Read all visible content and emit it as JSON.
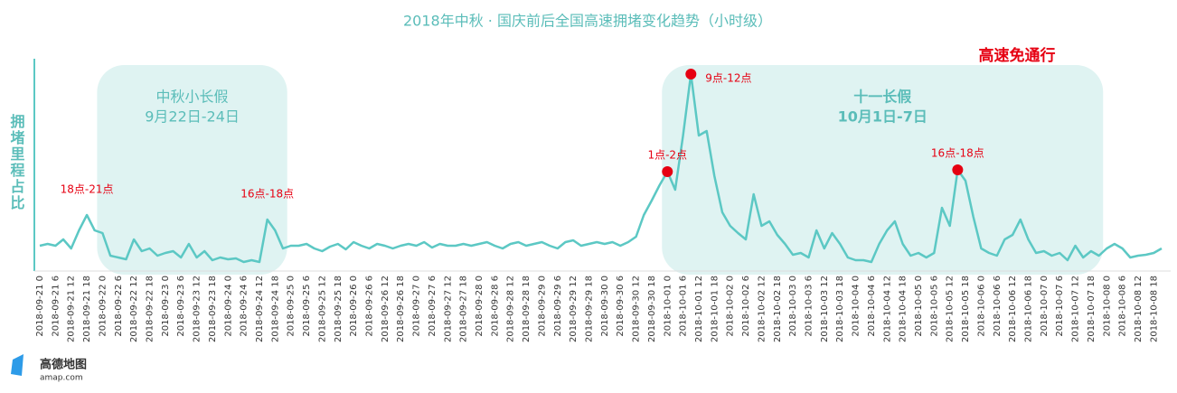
{
  "chart_data": {
    "type": "line",
    "title": "2018年中秋 · 国庆前后全国高速拥堵变化趋势（小时级）",
    "y_label": "拥堵里程占比",
    "color": "#5cc8c4",
    "ylim": [
      0,
      240
    ],
    "categories": [
      "2018-09-21 0",
      null,
      "2018-09-21 6",
      null,
      "2018-09-21 12",
      null,
      "2018-09-21 18",
      null,
      "2018-09-22 0",
      null,
      "2018-09-22 6",
      null,
      "2018-09-22 12",
      null,
      "2018-09-22 18",
      null,
      "2018-09-23 0",
      null,
      "2018-09-23 6",
      null,
      "2018-09-23 12",
      null,
      "2018-09-23 18",
      null,
      "2018-09-24 0",
      null,
      "2018-09-24 6",
      null,
      "2018-09-24 12",
      null,
      "2018-09-24 18",
      null,
      "2018-09-25 0",
      null,
      "2018-09-25 6",
      null,
      "2018-09-25 12",
      null,
      "2018-09-25 18",
      null,
      "2018-09-26 0",
      null,
      "2018-09-26 6",
      null,
      "2018-09-26 12",
      null,
      "2018-09-26 18",
      null,
      "2018-09-27 0",
      null,
      "2018-09-27 6",
      null,
      "2018-09-27 12",
      null,
      "2018-09-27 18",
      null,
      "2018-09-28 0",
      null,
      "2018-09-28 6",
      null,
      "2018-09-28 12",
      null,
      "2018-09-28 18",
      null,
      "2018-09-29 0",
      null,
      "2018-09-29 6",
      null,
      "2018-09-29 12",
      null,
      "2018-09-29 18",
      null,
      "2018-09-30 0",
      null,
      "2018-09-30 6",
      null,
      "2018-09-30 12",
      null,
      "2018-09-30 18",
      null,
      "2018-10-01 0",
      null,
      "2018-10-01 6",
      null,
      "2018-10-01 12",
      null,
      "2018-10-01 18",
      null,
      "2018-10-02 0",
      null,
      "2018-10-02 6",
      null,
      "2018-10-02 12",
      null,
      "2018-10-02 18",
      null,
      "2018-10-03 0",
      null,
      "2018-10-03 6",
      null,
      "2018-10-03 12",
      null,
      "2018-10-03 18",
      null,
      "2018-10-04 0",
      null,
      "2018-10-04 6",
      null,
      "2018-10-04 12",
      null,
      "2018-10-04 18",
      null,
      "2018-10-05 0",
      null,
      "2018-10-05 6",
      null,
      "2018-10-05 12",
      null,
      "2018-10-05 18",
      null,
      "2018-10-06 0",
      null,
      "2018-10-06 6",
      null,
      "2018-10-06 12",
      null,
      "2018-10-06 18",
      null,
      "2018-10-07 0",
      null,
      "2018-10-07 6",
      null,
      "2018-10-07 12",
      null,
      "2018-10-07 18",
      null,
      "2018-10-08 0",
      null,
      "2018-10-08 6",
      null,
      "2018-10-08 12",
      null,
      "2018-10-08 18",
      null
    ],
    "values": [
      28,
      30,
      28,
      35,
      25,
      45,
      62,
      45,
      42,
      17,
      15,
      13,
      35,
      22,
      25,
      17,
      20,
      22,
      15,
      30,
      15,
      22,
      12,
      15,
      13,
      14,
      10,
      12,
      10,
      57,
      45,
      25,
      28,
      28,
      30,
      25,
      22,
      27,
      30,
      24,
      32,
      28,
      25,
      30,
      28,
      25,
      28,
      30,
      28,
      32,
      26,
      30,
      28,
      28,
      30,
      28,
      30,
      32,
      28,
      25,
      30,
      32,
      28,
      30,
      32,
      28,
      25,
      32,
      34,
      28,
      30,
      32,
      30,
      32,
      28,
      32,
      38,
      62,
      78,
      95,
      110,
      90,
      150,
      218,
      150,
      155,
      105,
      65,
      50,
      42,
      35,
      85,
      50,
      55,
      40,
      30,
      18,
      20,
      15,
      45,
      25,
      42,
      30,
      15,
      12,
      12,
      10,
      30,
      45,
      55,
      30,
      17,
      20,
      15,
      20,
      70,
      50,
      112,
      100,
      60,
      25,
      20,
      17,
      35,
      40,
      57,
      35,
      20,
      22,
      17,
      20,
      12,
      28,
      15,
      22,
      17,
      25,
      30,
      25,
      15,
      17,
      18,
      20,
      25
    ],
    "holidays": [
      {
        "title": "中秋小长假",
        "subtitle": "9月22日-24日",
        "from": "2018-09-22 0",
        "to": "2018-09-25 0"
      },
      {
        "title": "十一长假",
        "subtitle": "10月1日-7日",
        "from": "2018-10-01 0",
        "to": "2018-10-08 0"
      }
    ],
    "annotations": [
      {
        "label": "18点-21点",
        "index": 6,
        "marker": false
      },
      {
        "label": "16点-18点",
        "index": 29,
        "marker": false
      },
      {
        "label": "1点-2点",
        "index": 80,
        "marker": true
      },
      {
        "label": "9点-12点",
        "index": 83,
        "marker": true
      },
      {
        "label": "16点-18点",
        "index": 117,
        "marker": true
      }
    ],
    "note": "高速免通行",
    "logo": {
      "name": "高德地图",
      "url": "amap.com"
    }
  }
}
